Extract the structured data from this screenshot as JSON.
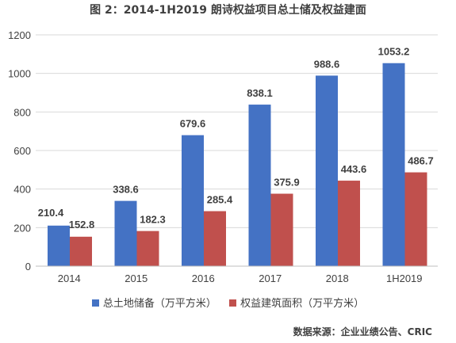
{
  "chart_data": {
    "type": "bar",
    "title": "图 2：2014-1H2019 朗诗权益项目总土储及权益建面",
    "categories": [
      "2014",
      "2015",
      "2016",
      "2017",
      "2018",
      "1H2019"
    ],
    "series": [
      {
        "name": "总土地储备（万平方米）",
        "color": "#4472c4",
        "values": [
          210.4,
          338.6,
          679.6,
          838.1,
          988.6,
          1053.2
        ],
        "labels": [
          "210.4",
          "338.6",
          "679.6",
          "838.1",
          "988.6",
          "1053.2"
        ]
      },
      {
        "name": "权益建筑面积（万平方米）",
        "color": "#c0504d",
        "values": [
          152.8,
          182.3,
          285.4,
          375.9,
          443.6,
          486.7
        ],
        "labels": [
          "152.8",
          "182.3",
          "285.4",
          "375.9",
          "443.6",
          "486.7"
        ]
      }
    ],
    "ylim": [
      0,
      1200
    ],
    "yticks": [
      "0",
      "200",
      "400",
      "600",
      "800",
      "1000",
      "1200"
    ],
    "grid": true,
    "legend_position": "bottom",
    "xlabel": "",
    "ylabel": ""
  },
  "source_note": "数据来源：企业业绩公告、CRIC"
}
